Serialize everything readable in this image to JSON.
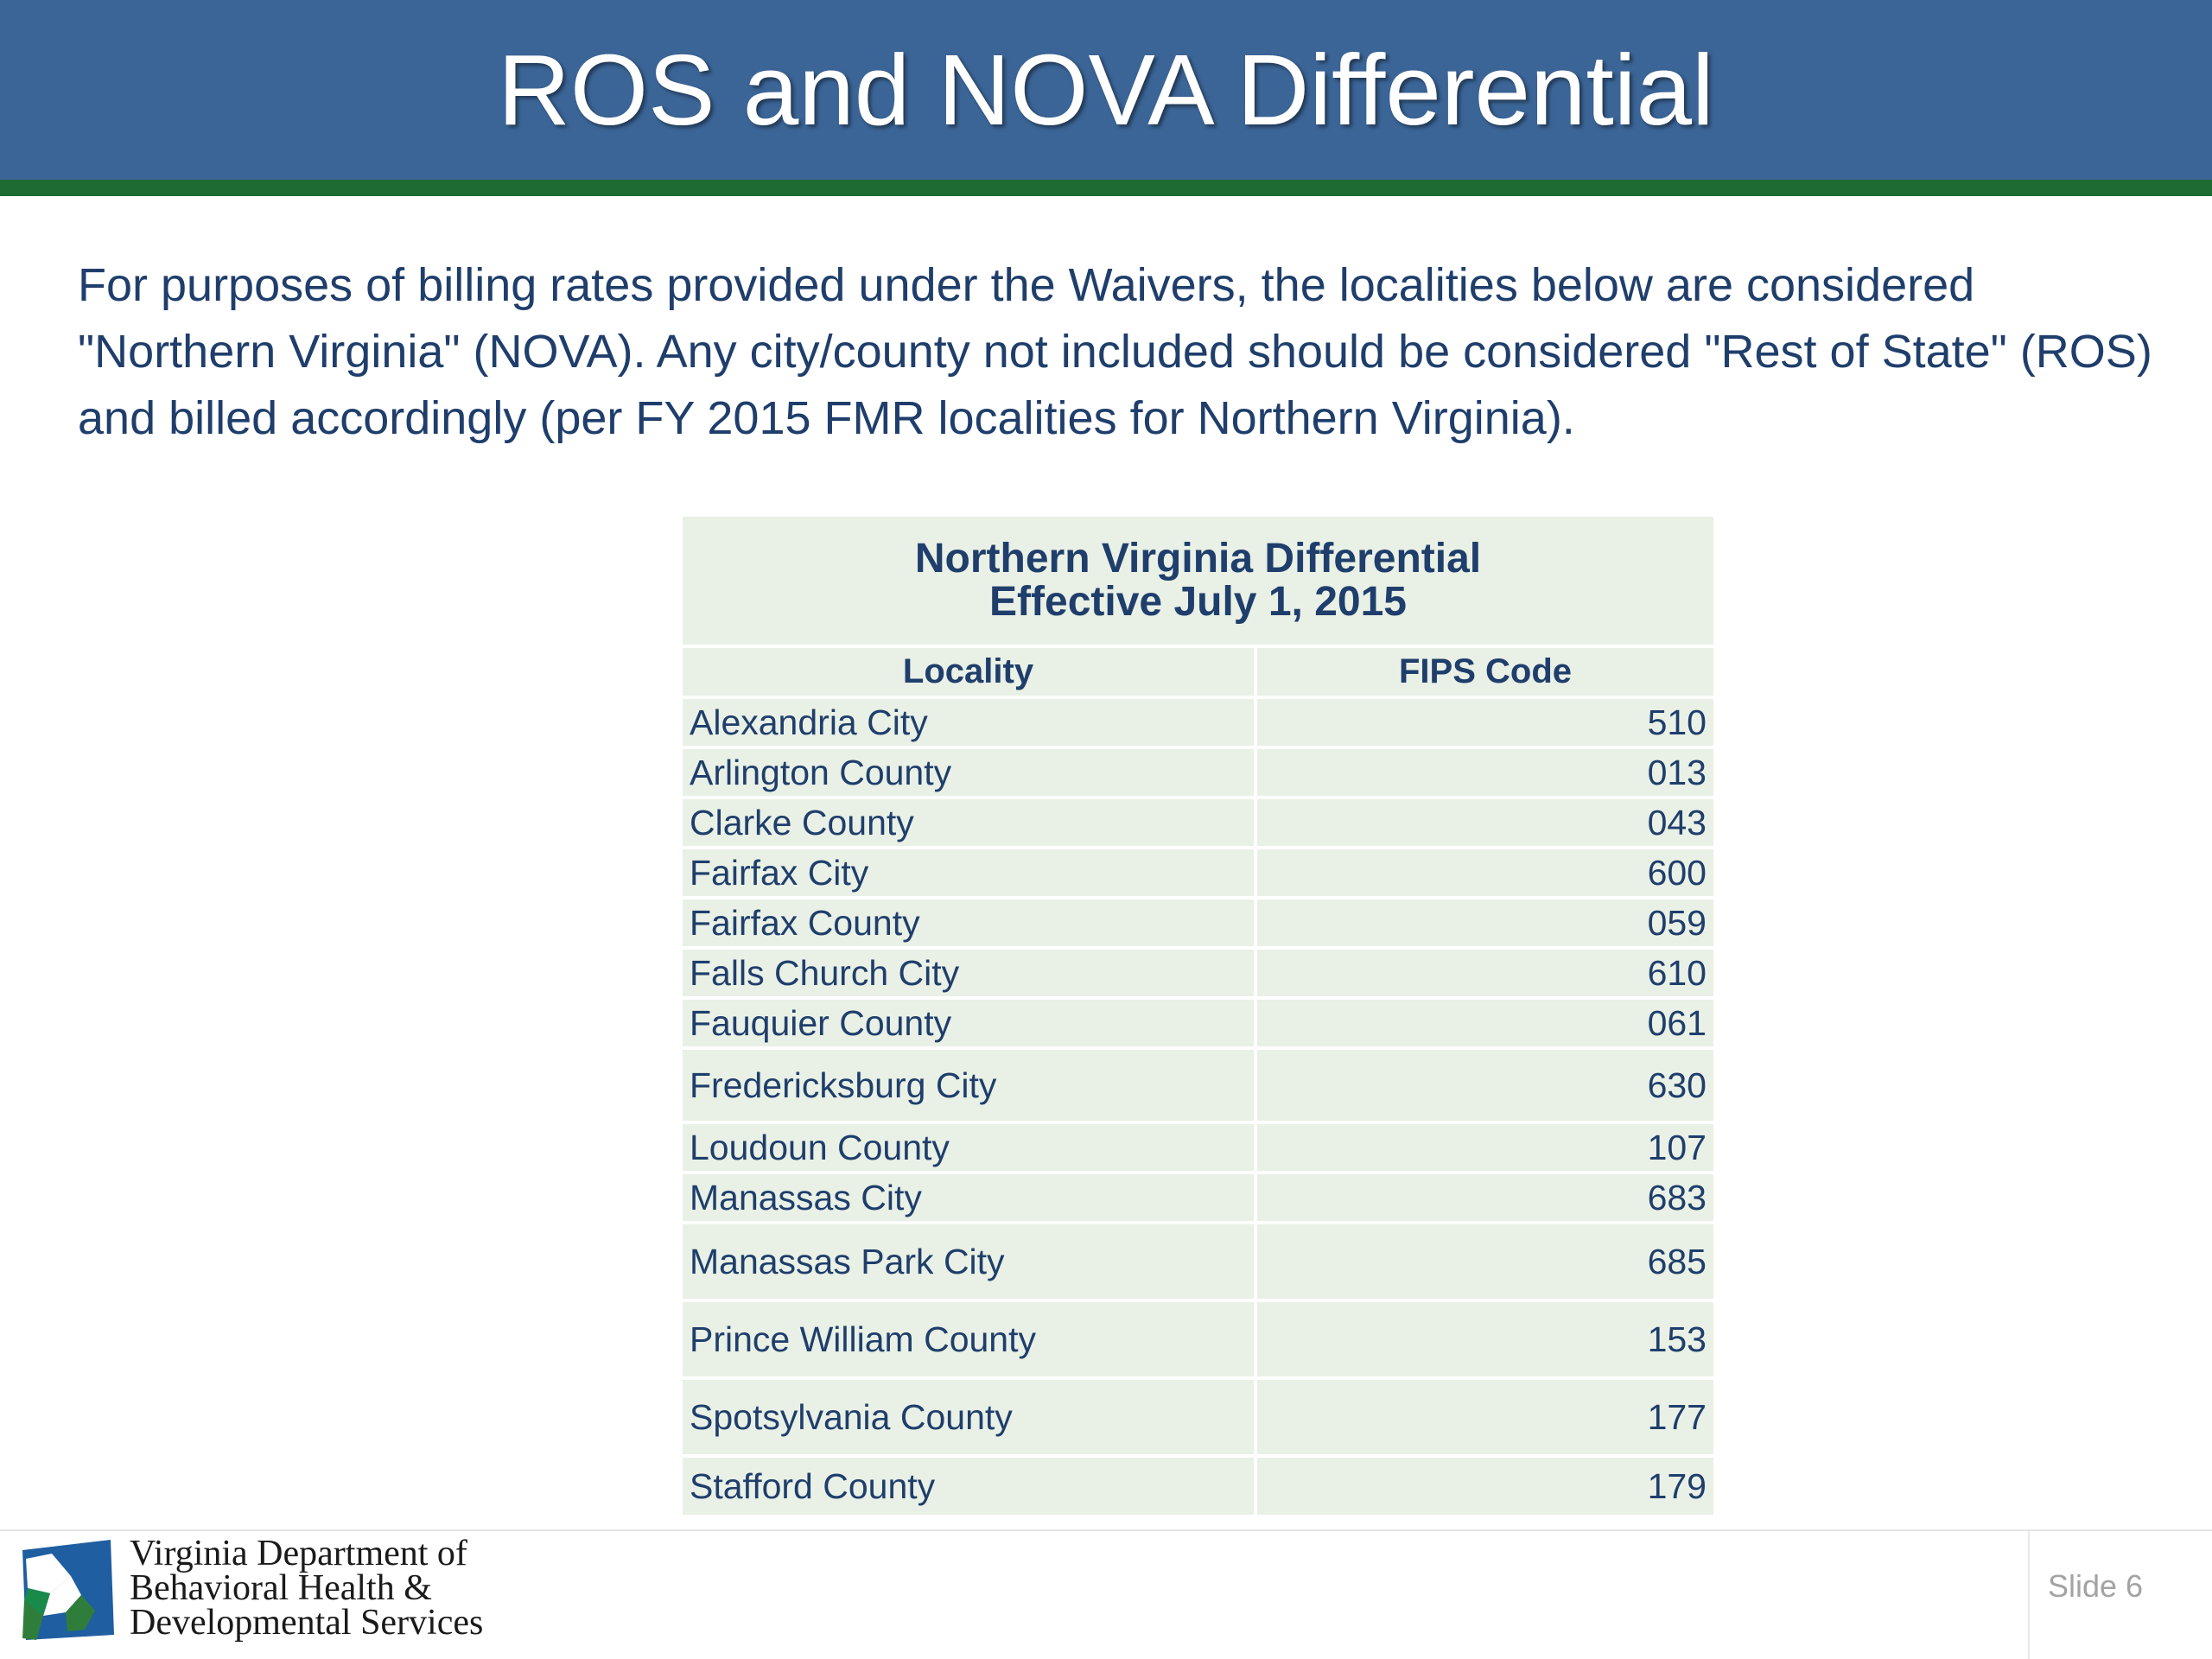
{
  "slide": {
    "title": "ROS and NOVA Differential",
    "intro": "For purposes of billing rates provided under the Waivers, the localities below are considered \"Northern Virginia\" (NOVA). Any city/county not included should be considered \"Rest of State\" (ROS) and billed accordingly (per FY 2015 FMR localities for Northern Virginia).",
    "slide_number": "Slide 6"
  },
  "table": {
    "title_line1": "Northern Virginia Differential",
    "title_line2": "Effective July 1, 2015",
    "columns": [
      "Locality",
      "FIPS Code"
    ],
    "rows": [
      {
        "locality": "Alexandria City",
        "fips": "510"
      },
      {
        "locality": "Arlington County",
        "fips": "013"
      },
      {
        "locality": "Clarke County",
        "fips": "043"
      },
      {
        "locality": "Fairfax City",
        "fips": "600"
      },
      {
        "locality": "Fairfax County",
        "fips": "059"
      },
      {
        "locality": "Falls Church City",
        "fips": "610"
      },
      {
        "locality": "Fauquier County",
        "fips": "061"
      },
      {
        "locality": "Fredericksburg City",
        "fips": "630"
      },
      {
        "locality": "Loudoun County",
        "fips": "107"
      },
      {
        "locality": "Manassas City",
        "fips": "683"
      },
      {
        "locality": "Manassas Park City",
        "fips": "685"
      },
      {
        "locality": "Prince William County",
        "fips": "153"
      },
      {
        "locality": "Spotsylvania County",
        "fips": "177"
      },
      {
        "locality": "Stafford County",
        "fips": "179"
      }
    ]
  },
  "logo": {
    "icon": "dbhds-logo-icon",
    "line1": "Virginia Department of",
    "line2": "Behavioral Health &",
    "line3": "Developmental Services"
  },
  "colors": {
    "title_bar": "#3b6597",
    "title_rule": "#1f6b34",
    "body_text": "#1f3e6b",
    "table_fill": "#e9f0e6"
  }
}
